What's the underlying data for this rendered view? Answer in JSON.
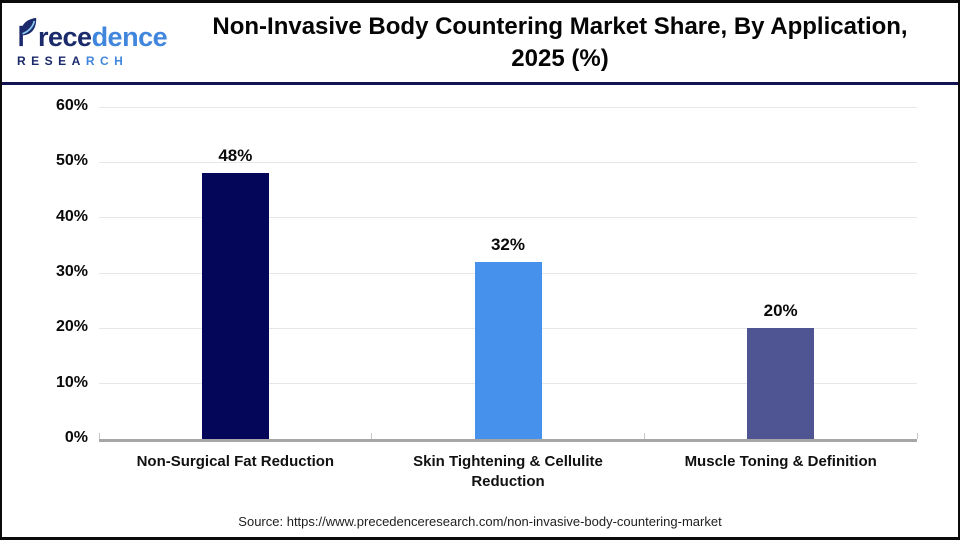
{
  "header": {
    "logo": {
      "brand_dark": "rece",
      "brand_blue": "dence",
      "sub_dark": "RESEA",
      "sub_blue": "RCH"
    },
    "title_line1": "Non-Invasive Body Countering Market Share, By Application,",
    "title_line2": "2025 (%)"
  },
  "chart_data": {
    "type": "bar",
    "title": "Non-Invasive Body Countering Market Share, By Application, 2025 (%)",
    "categories": [
      "Non-Surgical Fat Reduction",
      "Skin Tightening & Cellulite Reduction",
      "Muscle Toning & Definition"
    ],
    "values": [
      48,
      32,
      20
    ],
    "value_labels": [
      "48%",
      "32%",
      "20%"
    ],
    "bar_colors": [
      "#04065a",
      "#4591ec",
      "#4f5493"
    ],
    "yticks": [
      "0%",
      "10%",
      "20%",
      "30%",
      "40%",
      "50%",
      "60%"
    ],
    "ylim": [
      0,
      60
    ],
    "xlabel": "",
    "ylabel": "",
    "grid": true,
    "legend": false,
    "gridline_color": "#e7e7e7",
    "axis_color": "#a6a6a6"
  },
  "footer": {
    "source": "Source: https://www.precedenceresearch.com/non-invasive-body-countering-market"
  }
}
